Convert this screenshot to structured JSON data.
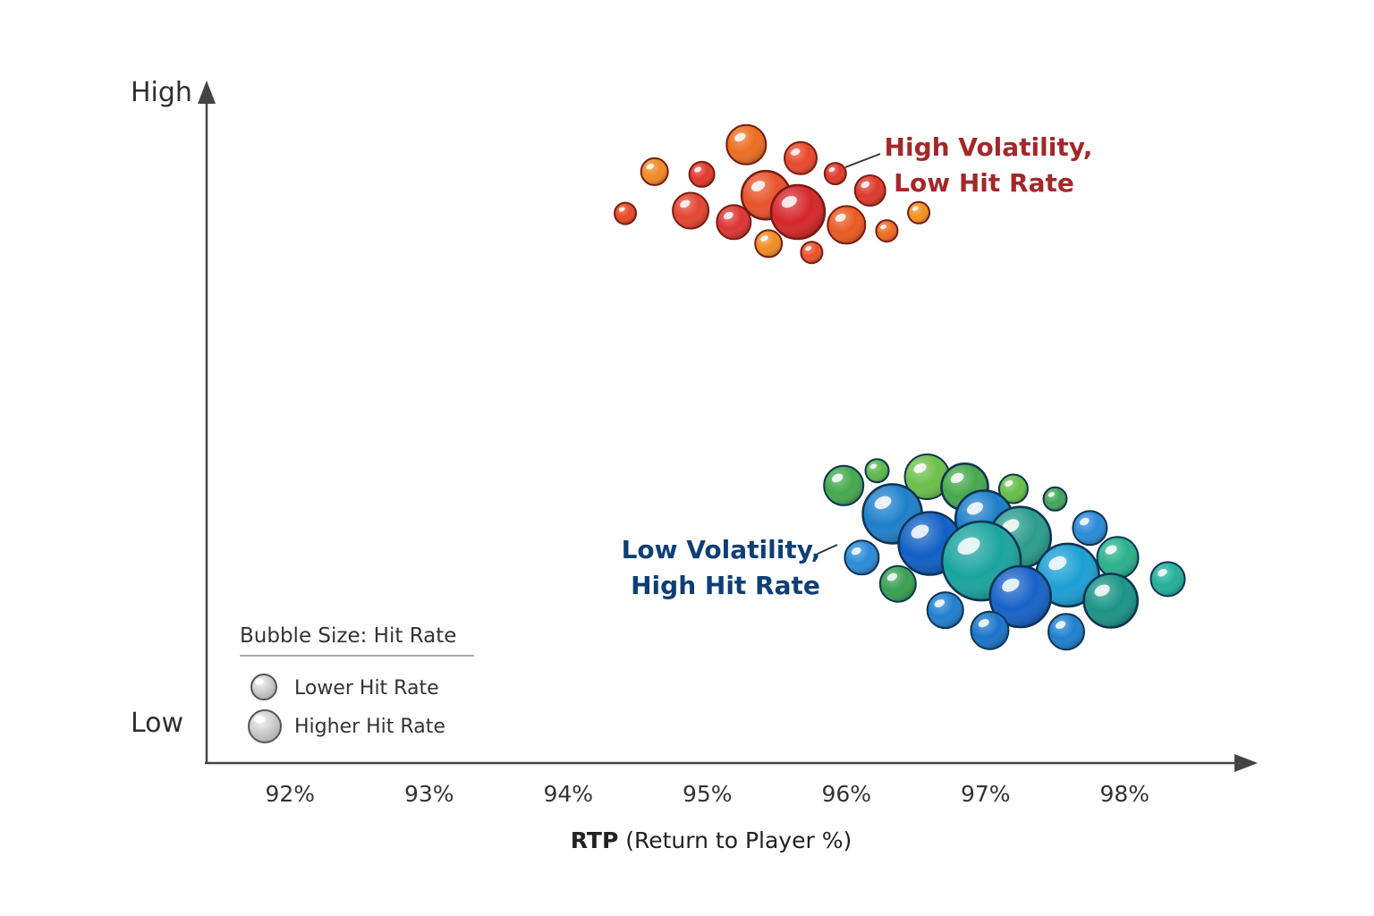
{
  "chart_data": {
    "type": "scatter",
    "xlabel_main": "RTP",
    "xlabel_rest": "(Return to Player %)",
    "y_high_label": "High",
    "y_low_label": "Low",
    "xlim": [
      91.4,
      98.95
    ],
    "ylim": [
      0,
      1
    ],
    "x_ticks": [
      92,
      93,
      94,
      95,
      96,
      97,
      98
    ],
    "x_tick_labels": [
      "92%",
      "93%",
      "94%",
      "95%",
      "96%",
      "97%",
      "98%"
    ],
    "grid": false,
    "legend": {
      "placement": "bottom-left",
      "title": "Bubble Size: Hit Rate",
      "items": [
        {
          "label": "Lower Hit Rate",
          "size": "small"
        },
        {
          "label": "Higher Hit Rate",
          "size": "large"
        }
      ]
    },
    "annotations": [
      {
        "lines": [
          "High Volatility,",
          "Low Hit Rate"
        ],
        "group": "high"
      },
      {
        "lines": [
          "Low Volatility,",
          "High Hit Rate"
        ],
        "group": "low"
      }
    ],
    "series": [
      {
        "color": "#e04a25",
        "points": [
          {
            "x": 95.28,
            "y": 0.918,
            "r": 22,
            "color": "#ec6d1f"
          },
          {
            "x": 95.67,
            "y": 0.898,
            "r": 18,
            "color": "#e8482a"
          },
          {
            "x": 94.62,
            "y": 0.878,
            "r": 15,
            "color": "#f08a26"
          },
          {
            "x": 94.96,
            "y": 0.874,
            "r": 14,
            "color": "#e03a2c"
          },
          {
            "x": 95.92,
            "y": 0.875,
            "r": 12,
            "color": "#e2392d"
          },
          {
            "x": 96.17,
            "y": 0.85,
            "r": 17,
            "color": "#dc3a2a"
          },
          {
            "x": 95.42,
            "y": 0.843,
            "r": 27,
            "color": "#e8532a"
          },
          {
            "x": 94.88,
            "y": 0.82,
            "r": 20,
            "color": "#e34530"
          },
          {
            "x": 95.65,
            "y": 0.818,
            "r": 30,
            "color": "#d6262a"
          },
          {
            "x": 94.41,
            "y": 0.816,
            "r": 12,
            "color": "#e64a22"
          },
          {
            "x": 96.52,
            "y": 0.817,
            "r": 12,
            "color": "#f39222"
          },
          {
            "x": 95.19,
            "y": 0.803,
            "r": 19,
            "color": "#dc3434"
          },
          {
            "x": 96.0,
            "y": 0.799,
            "r": 21,
            "color": "#ea5a22"
          },
          {
            "x": 96.29,
            "y": 0.79,
            "r": 12,
            "color": "#ef6a25"
          },
          {
            "x": 95.44,
            "y": 0.771,
            "r": 15,
            "color": "#f28c26"
          },
          {
            "x": 95.75,
            "y": 0.758,
            "r": 12,
            "color": "#e8532a"
          }
        ]
      },
      {
        "color": "#1b7bc6",
        "points": [
          {
            "x": 96.22,
            "y": 0.434,
            "r": 13,
            "color": "#5cb84a"
          },
          {
            "x": 96.58,
            "y": 0.425,
            "r": 25,
            "color": "#6cc04a"
          },
          {
            "x": 95.98,
            "y": 0.412,
            "r": 22,
            "color": "#46a84e"
          },
          {
            "x": 96.85,
            "y": 0.41,
            "r": 26,
            "color": "#45a84c"
          },
          {
            "x": 97.2,
            "y": 0.407,
            "r": 16,
            "color": "#68bd4a"
          },
          {
            "x": 97.5,
            "y": 0.392,
            "r": 13,
            "color": "#41a35a"
          },
          {
            "x": 96.33,
            "y": 0.37,
            "r": 33,
            "color": "#1d7fca"
          },
          {
            "x": 96.99,
            "y": 0.362,
            "r": 32,
            "color": "#1c7ec8"
          },
          {
            "x": 97.75,
            "y": 0.349,
            "r": 19,
            "color": "#2a8ad8"
          },
          {
            "x": 97.25,
            "y": 0.335,
            "r": 34,
            "color": "#2a9c8e"
          },
          {
            "x": 96.6,
            "y": 0.326,
            "r": 35,
            "color": "#0f5fc4"
          },
          {
            "x": 97.95,
            "y": 0.305,
            "r": 23,
            "color": "#2ab08c"
          },
          {
            "x": 96.11,
            "y": 0.305,
            "r": 19,
            "color": "#2a8ad8"
          },
          {
            "x": 96.97,
            "y": 0.3,
            "r": 44,
            "color": "#1aa49e"
          },
          {
            "x": 97.59,
            "y": 0.279,
            "r": 35,
            "color": "#1b9fd4"
          },
          {
            "x": 98.31,
            "y": 0.273,
            "r": 19,
            "color": "#22b09a"
          },
          {
            "x": 96.37,
            "y": 0.266,
            "r": 20,
            "color": "#37a050"
          },
          {
            "x": 97.25,
            "y": 0.247,
            "r": 34,
            "color": "#1762c8"
          },
          {
            "x": 97.9,
            "y": 0.241,
            "r": 30,
            "color": "#1a9486"
          },
          {
            "x": 96.71,
            "y": 0.227,
            "r": 20,
            "color": "#1f7fd0"
          },
          {
            "x": 97.03,
            "y": 0.197,
            "r": 21,
            "color": "#1a74c8"
          },
          {
            "x": 97.58,
            "y": 0.195,
            "r": 20,
            "color": "#1f7fd0"
          }
        ]
      }
    ]
  }
}
